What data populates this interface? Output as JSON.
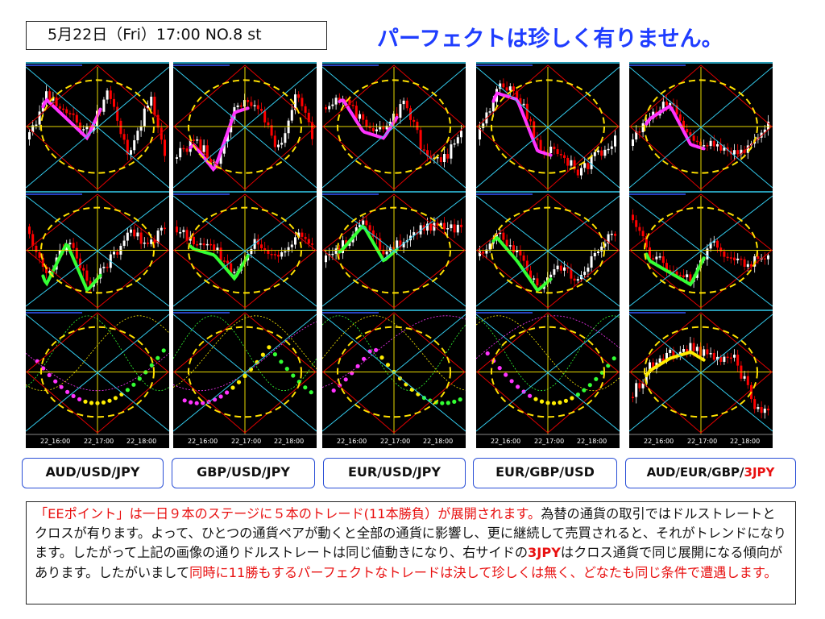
{
  "header": {
    "date_label": "5月22日（Fri）17:00  NO.8 st",
    "headline": "パーフェクトは珍しく有りません。"
  },
  "panels": [
    {
      "name": "aud-usd-jpy",
      "label": "AUD/USD/JPY",
      "label_suffix": "",
      "time_labels": [
        "22_16:00",
        "22_17:00",
        "22_18:00"
      ]
    },
    {
      "name": "gbp-usd-jpy",
      "label": "GBP/USD/JPY",
      "label_suffix": "",
      "time_labels": [
        "22_16:00",
        "22_17:00",
        "22_18:00"
      ]
    },
    {
      "name": "eur-usd-jpy",
      "label": "EUR/USD/JPY",
      "label_suffix": "",
      "time_labels": [
        "22_16:00",
        "22_17:00",
        "22_18:00"
      ]
    },
    {
      "name": "eur-gbp-usd",
      "label": "EUR/GBP/USD",
      "label_suffix": "",
      "time_labels": [
        "22_16:00",
        "22_17:00",
        "22_18:00"
      ]
    },
    {
      "name": "aud-eur-gbp-3jpy",
      "label": "AUD/EUR/GBP/",
      "label_suffix": "3JPY",
      "time_labels": [
        "22_16:00",
        "22_17:00",
        "22_18:00"
      ]
    }
  ],
  "description": {
    "part1": "「EEポイント」は一日９本のステージに５本のトレード(11本勝負）が展開されます。",
    "part2": "為替の通貨の取引ではドルストレートとクロスが有ります。よって、ひとつの通貨ペアが動くと全部の通貨に影響し、更に継続して売買されると、それがトレンドになります。したがって上記の画像の通りドルストレートは同じ値動きになり、右サイドの",
    "part3": "3JPY",
    "part4": "はクロス通貨で同じ展開になる傾向があります。したがいまして",
    "part5": "同時に11勝もするパーフェクトなトレードは決して珍しくは無く、どなたも同じ条件で遭遇します。"
  },
  "colors": {
    "headline": "#1f3dff",
    "label_border": "#2a4fd6",
    "accent_red": "#e81010",
    "chart_bg": "#000000",
    "bull_candle": "#ffffff",
    "bear_candle": "#ff0000",
    "diamond_red": "#e00000",
    "diamond_cyan": "#33ccee",
    "crosshair": "#e6d800",
    "circle": "#ffe000",
    "trend_magenta": "#ff33ff",
    "trend_green": "#33ff33",
    "trend_yellow": "#ffee00"
  }
}
